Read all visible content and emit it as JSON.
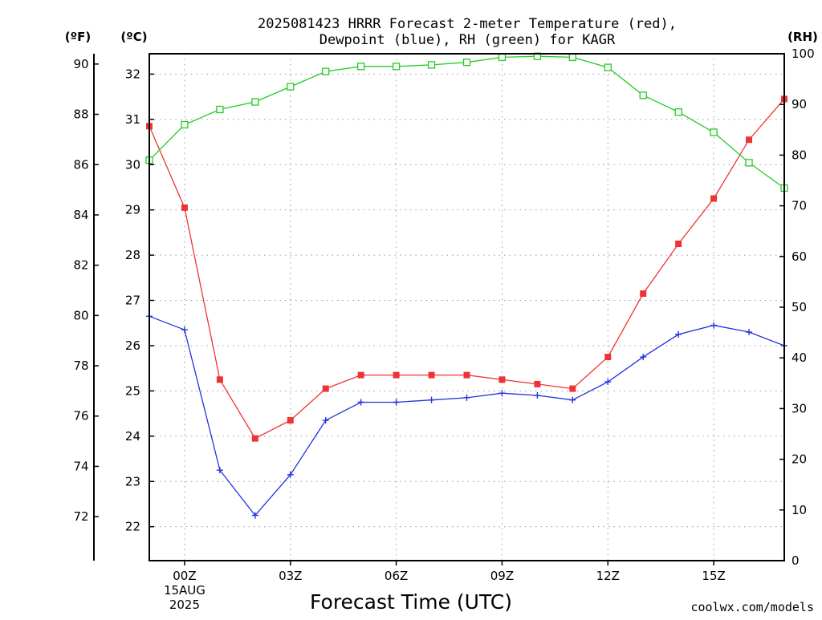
{
  "title_lines": [
    "2025081423 HRRR Forecast 2-meter Temperature (red),",
    "Dewpoint (blue), RH (green) for KAGR"
  ],
  "credit": "coolwx.com/models",
  "colors": {
    "temperature": "#ee3333",
    "dewpoint": "#2233dd",
    "rh": "#22cc22",
    "axis": "#000000",
    "grid": "#999999"
  },
  "chart_data": {
    "type": "line",
    "title": "2025081423 HRRR Forecast 2-meter Temperature (red), Dewpoint (blue), RH (green) for KAGR",
    "xlabel": "Forecast Time (UTC)",
    "x_unit": "hours since 2025-08-14 23Z",
    "x": [
      0,
      1,
      2,
      3,
      4,
      5,
      6,
      7,
      8,
      9,
      10,
      11,
      12,
      13,
      14,
      15,
      16,
      17,
      18
    ],
    "xlim": [
      0,
      18
    ],
    "x_ticks": [
      {
        "x": 1,
        "label": "00Z",
        "sublabels": [
          "15AUG",
          "2025"
        ]
      },
      {
        "x": 4,
        "label": "03Z"
      },
      {
        "x": 7,
        "label": "06Z"
      },
      {
        "x": 10,
        "label": "09Z"
      },
      {
        "x": 13,
        "label": "12Z"
      },
      {
        "x": 16,
        "label": "15Z"
      }
    ],
    "y_celsius": {
      "unit_label": "(ºC)",
      "ylim": [
        21.25,
        32.45
      ],
      "ticks": [
        22,
        23,
        24,
        25,
        26,
        27,
        28,
        29,
        30,
        31,
        32
      ]
    },
    "y_fahrenheit": {
      "unit_label": "(ºF)",
      "ylim": [
        70.25,
        90.41
      ],
      "ticks": [
        72,
        74,
        76,
        78,
        80,
        82,
        84,
        86,
        88,
        90
      ]
    },
    "y_rh": {
      "unit_label": "(RH)",
      "ylim": [
        0,
        100
      ],
      "ticks": [
        0,
        10,
        20,
        30,
        40,
        50,
        60,
        70,
        80,
        90,
        100
      ]
    },
    "grid": true,
    "series": [
      {
        "name": "Temperature",
        "color_key": "temperature",
        "axis": "celsius",
        "marker": "filled-square",
        "values": [
          30.85,
          29.05,
          25.25,
          23.95,
          24.35,
          25.05,
          25.35,
          25.35,
          25.35,
          25.35,
          25.25,
          25.15,
          25.05,
          25.75,
          27.15,
          28.25,
          29.25,
          30.55,
          31.45
        ]
      },
      {
        "name": "Dewpoint",
        "color_key": "dewpoint",
        "axis": "celsius",
        "marker": "plus",
        "values": [
          26.65,
          26.35,
          23.25,
          22.25,
          23.15,
          24.35,
          24.75,
          24.75,
          24.8,
          24.85,
          24.95,
          24.9,
          24.8,
          25.2,
          25.75,
          26.25,
          26.45,
          26.3,
          26.0
        ]
      },
      {
        "name": "RH",
        "color_key": "rh",
        "axis": "rh",
        "marker": "open-square",
        "values": [
          79,
          86,
          89,
          90.5,
          93.5,
          96.5,
          97.5,
          97.5,
          97.8,
          98.3,
          99.3,
          99.5,
          99.3,
          97.3,
          91.8,
          88.5,
          84.5,
          78.5,
          73.5
        ]
      }
    ]
  }
}
